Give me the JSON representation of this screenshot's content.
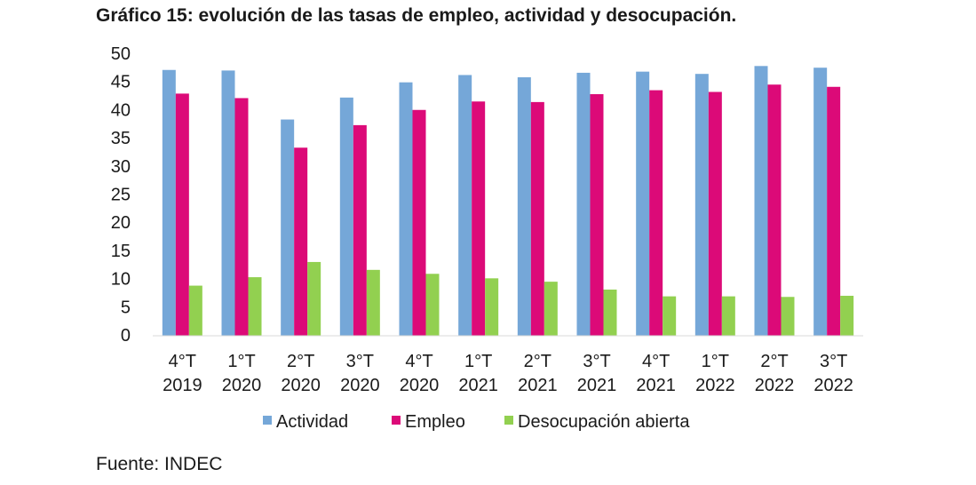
{
  "title": "Gráfico 15: evolución de las tasas de empleo, actividad y desocupación.",
  "source": "Fuente: INDEC",
  "colors": {
    "Actividad": "#75a7d8",
    "Empleo": "#dc0a78",
    "Desocupación abierta": "#92d050"
  },
  "chart_data": {
    "type": "bar",
    "title": "Gráfico 15: evolución de las tasas de empleo, actividad y desocupación.",
    "categories": [
      [
        "4°T",
        "2019"
      ],
      [
        "1°T",
        "2020"
      ],
      [
        "2°T",
        "2020"
      ],
      [
        "3°T",
        "2020"
      ],
      [
        "4°T",
        "2020"
      ],
      [
        "1°T",
        "2021"
      ],
      [
        "2°T",
        "2021"
      ],
      [
        "3°T",
        "2021"
      ],
      [
        "4°T",
        "2021"
      ],
      [
        "1°T",
        "2022"
      ],
      [
        "2°T",
        "2022"
      ],
      [
        "3°T",
        "2022"
      ]
    ],
    "series": [
      {
        "name": "Actividad",
        "values": [
          47.2,
          47.1,
          38.4,
          42.3,
          45.0,
          46.3,
          45.9,
          46.7,
          46.9,
          46.5,
          47.9,
          47.6
        ]
      },
      {
        "name": "Empleo",
        "values": [
          43.0,
          42.2,
          33.4,
          37.4,
          40.1,
          41.6,
          41.5,
          42.9,
          43.6,
          43.3,
          44.6,
          44.2
        ]
      },
      {
        "name": "Desocupación abierta",
        "values": [
          8.9,
          10.4,
          13.1,
          11.7,
          11.0,
          10.2,
          9.6,
          8.2,
          7.0,
          7.0,
          6.9,
          7.1
        ]
      }
    ],
    "yticks": [
      0,
      5,
      10,
      15,
      20,
      25,
      30,
      35,
      40,
      45,
      50
    ],
    "ylim": [
      0,
      50
    ],
    "grid": false,
    "legend": "bottom"
  }
}
